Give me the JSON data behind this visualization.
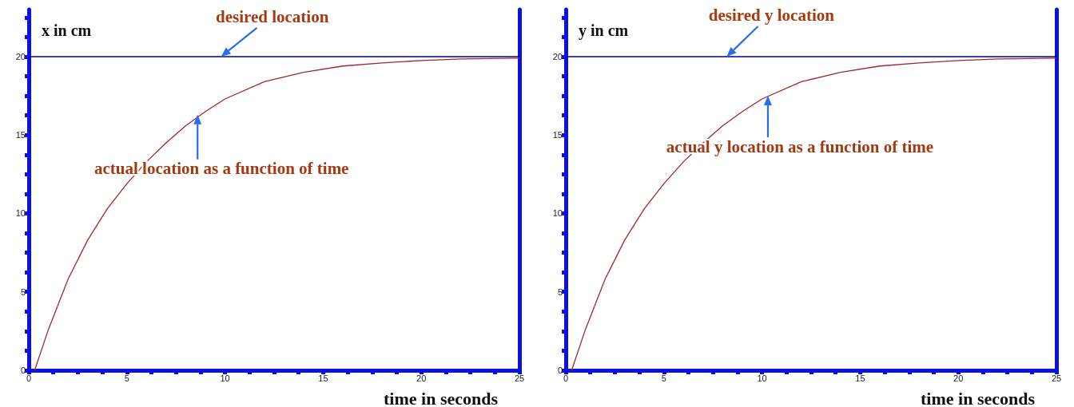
{
  "chart_data": [
    {
      "type": "line",
      "ylabel": "x in cm",
      "xlabel": "time in seconds",
      "series": [
        {
          "color": "#a0282d",
          "x": [
            0.3,
            1,
            2,
            3,
            4,
            5,
            6,
            7,
            8,
            9,
            10,
            12,
            14,
            16,
            18,
            20,
            22,
            25
          ],
          "values": [
            0,
            2.6,
            5.8,
            8.3,
            10.3,
            11.9,
            13.3,
            14.5,
            15.6,
            16.5,
            17.3,
            18.4,
            19.0,
            19.4,
            19.6,
            19.75,
            19.85,
            19.9
          ]
        }
      ],
      "xlim": [
        0,
        25
      ],
      "ylim": [
        0,
        23
      ],
      "xticks": [
        0,
        {
          "value": 1.25,
          "label": null
        },
        {
          "value": 2.5,
          "label": null
        },
        {
          "value": 3.75,
          "label": null
        },
        5,
        {
          "value": 6.25,
          "label": null
        },
        {
          "value": 7.5,
          "label": null
        },
        {
          "value": 8.75,
          "label": null
        },
        10,
        {
          "value": 11.25,
          "label": null
        },
        {
          "value": 12.5,
          "label": null
        },
        {
          "value": 13.75,
          "label": null
        },
        15,
        {
          "value": 16.25,
          "label": null
        },
        {
          "value": 17.5,
          "label": null
        },
        {
          "value": 18.75,
          "label": null
        },
        20,
        {
          "value": 21.25,
          "label": null
        },
        {
          "value": 22.5,
          "label": null
        },
        {
          "value": 23.75,
          "label": null
        },
        25
      ],
      "yticks": [
        0,
        {
          "value": 1.25,
          "label": null
        },
        {
          "value": 2.5,
          "label": null
        },
        {
          "value": 3.75,
          "label": null
        },
        5,
        {
          "value": 6.25,
          "label": null
        },
        {
          "value": 7.5,
          "label": null
        },
        {
          "value": 8.75,
          "label": null
        },
        10,
        {
          "value": 11.25,
          "label": null
        },
        {
          "value": 12.5,
          "label": null
        },
        {
          "value": 13.75,
          "label": null
        },
        15,
        {
          "value": 16.25,
          "label": null
        },
        {
          "value": 17.5,
          "label": null
        },
        {
          "value": 18.75,
          "label": null
        },
        20,
        {
          "value": 21.25,
          "label": null
        },
        {
          "value": 22.5,
          "label": null
        }
      ],
      "ref_lines": [
        {
          "axis": "y",
          "value": 20,
          "color": "#000080"
        }
      ],
      "annotations": [
        {
          "text": "desired location",
          "x": 9.8,
          "y": 20
        },
        {
          "text": "actual location as a function of time",
          "x": 8.6,
          "y": 16.3
        }
      ],
      "marker": "none",
      "line_style": "solid"
    },
    {
      "type": "line",
      "ylabel": "y in cm",
      "xlabel": "time in seconds",
      "series": [
        {
          "color": "#a0282d",
          "x": [
            0.3,
            1,
            2,
            3,
            4,
            5,
            6,
            7,
            8,
            9,
            10,
            12,
            14,
            16,
            18,
            20,
            22,
            25
          ],
          "values": [
            0,
            2.6,
            5.8,
            8.3,
            10.3,
            11.9,
            13.3,
            14.5,
            15.6,
            16.5,
            17.3,
            18.4,
            19.0,
            19.4,
            19.6,
            19.75,
            19.85,
            19.9
          ]
        }
      ],
      "xlim": [
        0,
        25
      ],
      "ylim": [
        0,
        23
      ],
      "xticks": [
        0,
        {
          "value": 1.25,
          "label": null
        },
        {
          "value": 2.5,
          "label": null
        },
        {
          "value": 3.75,
          "label": null
        },
        5,
        {
          "value": 6.25,
          "label": null
        },
        {
          "value": 7.5,
          "label": null
        },
        {
          "value": 8.75,
          "label": null
        },
        10,
        {
          "value": 11.25,
          "label": null
        },
        {
          "value": 12.5,
          "label": null
        },
        {
          "value": 13.75,
          "label": null
        },
        15,
        {
          "value": 16.25,
          "label": null
        },
        {
          "value": 17.5,
          "label": null
        },
        {
          "value": 18.75,
          "label": null
        },
        20,
        {
          "value": 21.25,
          "label": null
        },
        {
          "value": 22.5,
          "label": null
        },
        {
          "value": 23.75,
          "label": null
        },
        25
      ],
      "yticks": [
        0,
        {
          "value": 1.25,
          "label": null
        },
        {
          "value": 2.5,
          "label": null
        },
        {
          "value": 3.75,
          "label": null
        },
        5,
        {
          "value": 6.25,
          "label": null
        },
        {
          "value": 7.5,
          "label": null
        },
        {
          "value": 8.75,
          "label": null
        },
        10,
        {
          "value": 11.25,
          "label": null
        },
        {
          "value": 12.5,
          "label": null
        },
        {
          "value": 13.75,
          "label": null
        },
        15,
        {
          "value": 16.25,
          "label": null
        },
        {
          "value": 17.5,
          "label": null
        },
        {
          "value": 18.75,
          "label": null
        },
        20,
        {
          "value": 21.25,
          "label": null
        },
        {
          "value": 22.5,
          "label": null
        }
      ],
      "ref_lines": [
        {
          "axis": "y",
          "value": 20,
          "color": "#000080"
        }
      ],
      "annotations": [
        {
          "text": "desired y location",
          "x": 8.2,
          "y": 20
        },
        {
          "text": "actual y location as a function of time",
          "x": 10.3,
          "y": 17.5
        }
      ],
      "marker": "none",
      "line_style": "solid"
    }
  ]
}
